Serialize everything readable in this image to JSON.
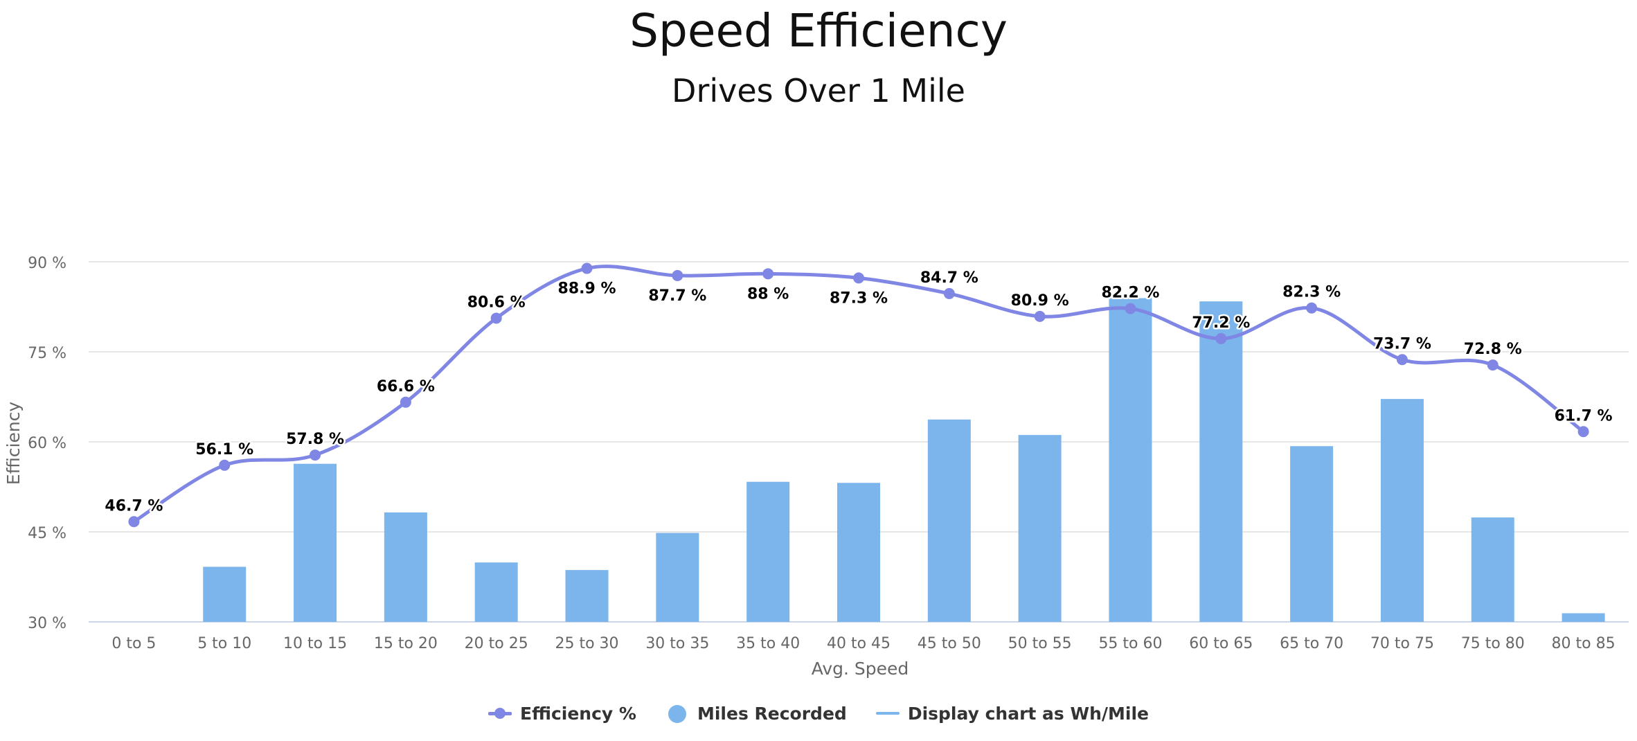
{
  "chart_data": {
    "type": "bar",
    "title": "Speed Efficiency",
    "subtitle": "Drives Over 1 Mile",
    "xlabel": "Avg. Speed",
    "ylabel": "Efficiency",
    "categories": [
      "0 to 5",
      "5 to 10",
      "10 to 15",
      "15 to 20",
      "20 to 25",
      "25 to 30",
      "30 to 35",
      "35 to 40",
      "40 to 45",
      "45 to 50",
      "50 to 55",
      "55 to 60",
      "60 to 65",
      "65 to 70",
      "70 to 75",
      "75 to 80",
      "80 to 85"
    ],
    "ylim": [
      30,
      90
    ],
    "yticks": [
      30,
      45,
      60,
      75,
      90
    ],
    "ytick_labels": [
      "30 %",
      "45 %",
      "60 %",
      "75 %",
      "90 %"
    ],
    "grid": true,
    "legend_position": "bottom-center",
    "series": [
      {
        "name": "Efficiency %",
        "type": "spline",
        "color": "#7f86e4",
        "values": [
          46.7,
          56.1,
          57.8,
          66.6,
          80.6,
          88.9,
          87.7,
          88,
          87.3,
          84.7,
          80.9,
          82.2,
          77.2,
          82.3,
          73.7,
          72.8,
          61.7
        ],
        "labels": [
          "46.7 %",
          "56.1 %",
          "57.8 %",
          "66.6 %",
          "80.6 %",
          "88.9 %",
          "87.7 %",
          "88 %",
          "87.3 %",
          "84.7 %",
          "80.9 %",
          "82.2 %",
          "77.2 %",
          "82.3 %",
          "73.7 %",
          "72.8 %",
          "61.7 %"
        ]
      },
      {
        "name": "Miles Recorded",
        "type": "column",
        "color": "#7cb5ec",
        "relative_heights": [
          0,
          0.153,
          0.439,
          0.304,
          0.165,
          0.144,
          0.247,
          0.389,
          0.386,
          0.562,
          0.519,
          0.899,
          0.89,
          0.488,
          0.619,
          0.29,
          0.024
        ]
      },
      {
        "name": "Display chart as Wh/Mile",
        "type": "toggle",
        "color": "#7cb5ec"
      }
    ]
  }
}
